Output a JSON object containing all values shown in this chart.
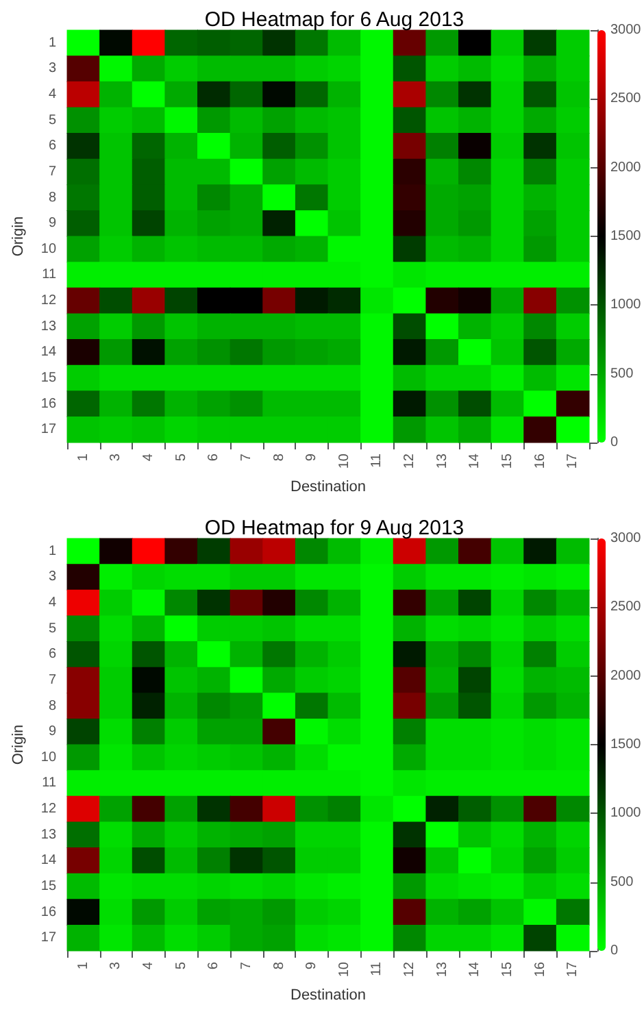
{
  "chart_data": [
    {
      "type": "heatmap",
      "title": "OD Heatmap for 6 Aug 2013",
      "xlabel": "Destination",
      "ylabel": "Origin",
      "categories": [
        "1",
        "3",
        "4",
        "5",
        "6",
        "7",
        "8",
        "9",
        "10",
        "11",
        "12",
        "13",
        "14",
        "15",
        "16",
        "17"
      ],
      "y_categories": [
        "1",
        "3",
        "4",
        "5",
        "6",
        "7",
        "8",
        "9",
        "10",
        "11",
        "12",
        "13",
        "14",
        "15",
        "16",
        "17"
      ],
      "clim": [
        0,
        3000
      ],
      "cticks": [
        0,
        500,
        1000,
        1500,
        2000,
        2500,
        3000
      ],
      "cells": [
        [
          0,
          1450,
          3000,
          900,
          950,
          900,
          1200,
          800,
          400,
          50,
          2100,
          600,
          1500,
          300,
          1150,
          300
        ],
        [
          2000,
          50,
          500,
          300,
          400,
          400,
          400,
          300,
          250,
          50,
          1000,
          300,
          400,
          200,
          500,
          300
        ],
        [
          2600,
          450,
          0,
          500,
          1250,
          900,
          1450,
          900,
          450,
          50,
          2500,
          700,
          1200,
          250,
          1000,
          350
        ],
        [
          650,
          300,
          400,
          50,
          600,
          400,
          550,
          400,
          350,
          50,
          1000,
          350,
          450,
          250,
          500,
          300
        ],
        [
          1200,
          350,
          900,
          450,
          0,
          450,
          950,
          650,
          350,
          50,
          2200,
          750,
          1550,
          300,
          1200,
          350
        ],
        [
          850,
          350,
          950,
          400,
          400,
          0,
          550,
          400,
          300,
          50,
          1750,
          450,
          700,
          250,
          750,
          300
        ],
        [
          800,
          350,
          950,
          400,
          700,
          500,
          0,
          800,
          300,
          50,
          1800,
          500,
          550,
          250,
          450,
          300
        ],
        [
          950,
          350,
          1100,
          450,
          550,
          500,
          1300,
          0,
          350,
          50,
          1700,
          500,
          600,
          250,
          550,
          300
        ],
        [
          550,
          300,
          450,
          350,
          400,
          400,
          500,
          450,
          50,
          50,
          1150,
          400,
          450,
          250,
          600,
          300
        ],
        [
          100,
          100,
          100,
          100,
          100,
          100,
          100,
          100,
          100,
          50,
          150,
          100,
          100,
          100,
          100,
          100
        ],
        [
          2100,
          1050,
          2400,
          1100,
          1500,
          1500,
          2200,
          1350,
          1250,
          150,
          0,
          1700,
          1600,
          500,
          2300,
          650
        ],
        [
          550,
          300,
          600,
          350,
          450,
          450,
          450,
          400,
          400,
          50,
          1050,
          0,
          450,
          300,
          700,
          300
        ],
        [
          1650,
          600,
          1400,
          550,
          650,
          800,
          600,
          550,
          500,
          50,
          1350,
          600,
          0,
          350,
          1000,
          500
        ],
        [
          300,
          200,
          200,
          200,
          200,
          200,
          200,
          200,
          200,
          50,
          400,
          250,
          250,
          100,
          400,
          150
        ],
        [
          900,
          450,
          800,
          450,
          550,
          650,
          400,
          400,
          400,
          50,
          1350,
          650,
          1050,
          400,
          0,
          1800
        ],
        [
          350,
          300,
          350,
          250,
          300,
          300,
          300,
          300,
          300,
          50,
          600,
          350,
          500,
          150,
          1800,
          0
        ]
      ]
    },
    {
      "type": "heatmap",
      "title": "OD Heatmap for 9 Aug 2013",
      "xlabel": "Destination",
      "ylabel": "Origin",
      "categories": [
        "1",
        "3",
        "4",
        "5",
        "6",
        "7",
        "8",
        "9",
        "10",
        "11",
        "12",
        "13",
        "14",
        "15",
        "16",
        "17"
      ],
      "y_categories": [
        "1",
        "3",
        "4",
        "5",
        "6",
        "7",
        "8",
        "9",
        "10",
        "11",
        "12",
        "13",
        "14",
        "15",
        "16",
        "17"
      ],
      "clim": [
        0,
        3000
      ],
      "cticks": [
        0,
        500,
        1000,
        1500,
        2000,
        2500,
        3000
      ],
      "cells": [
        [
          0,
          1600,
          3000,
          1800,
          1150,
          2400,
          2600,
          700,
          400,
          100,
          2700,
          600,
          1900,
          350,
          1350,
          400
        ],
        [
          1700,
          100,
          250,
          200,
          200,
          300,
          300,
          150,
          150,
          50,
          300,
          150,
          150,
          100,
          150,
          100
        ],
        [
          2900,
          300,
          50,
          700,
          1200,
          2100,
          1700,
          700,
          450,
          50,
          1800,
          550,
          1100,
          250,
          700,
          450
        ],
        [
          700,
          200,
          450,
          0,
          300,
          300,
          350,
          200,
          200,
          50,
          450,
          200,
          250,
          150,
          300,
          200
        ],
        [
          1000,
          250,
          1000,
          450,
          0,
          450,
          800,
          450,
          300,
          50,
          1350,
          500,
          700,
          250,
          750,
          300
        ],
        [
          2300,
          300,
          1450,
          350,
          450,
          0,
          500,
          300,
          250,
          50,
          2000,
          450,
          1100,
          200,
          450,
          400
        ],
        [
          2300,
          300,
          1300,
          450,
          700,
          600,
          0,
          800,
          400,
          50,
          2200,
          600,
          1000,
          250,
          600,
          450
        ],
        [
          1100,
          200,
          750,
          300,
          550,
          550,
          1900,
          50,
          200,
          50,
          750,
          200,
          200,
          150,
          200,
          150
        ],
        [
          600,
          150,
          350,
          250,
          300,
          350,
          450,
          200,
          50,
          50,
          500,
          200,
          200,
          150,
          200,
          150
        ],
        [
          100,
          100,
          100,
          100,
          100,
          100,
          100,
          100,
          100,
          50,
          150,
          100,
          100,
          100,
          100,
          100
        ],
        [
          2800,
          550,
          1900,
          550,
          1200,
          1900,
          2700,
          650,
          750,
          150,
          0,
          1300,
          950,
          650,
          1950,
          700
        ],
        [
          850,
          200,
          500,
          300,
          450,
          500,
          550,
          250,
          250,
          50,
          1200,
          0,
          350,
          200,
          450,
          250
        ],
        [
          2200,
          250,
          1050,
          400,
          750,
          1200,
          1000,
          300,
          300,
          50,
          1600,
          350,
          0,
          250,
          550,
          300
        ],
        [
          400,
          150,
          200,
          200,
          250,
          200,
          250,
          150,
          100,
          50,
          600,
          200,
          150,
          100,
          300,
          200
        ],
        [
          1450,
          200,
          600,
          300,
          550,
          500,
          600,
          300,
          250,
          50,
          2000,
          450,
          550,
          350,
          50,
          800
        ],
        [
          450,
          150,
          400,
          200,
          300,
          500,
          550,
          200,
          150,
          50,
          700,
          250,
          250,
          150,
          1100,
          50
        ]
      ]
    }
  ]
}
